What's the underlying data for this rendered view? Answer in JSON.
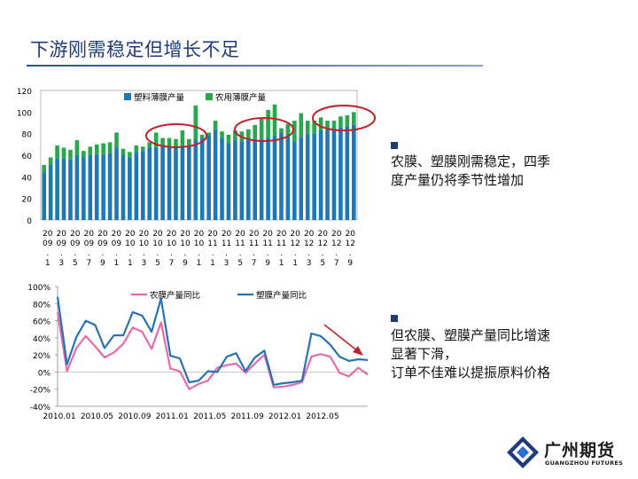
{
  "page_title": "下游刚需稳定但增长不足",
  "notes": [
    {
      "bullet": "■",
      "text": "农膜、塑膜刚需稳定，四季度产量仍将季节性增加",
      "lines": [
        "农膜、塑膜刚需稳定，四季",
        "度产量仍将季节性增加"
      ]
    },
    {
      "bullet": "■",
      "text": "但农膜、塑膜产量同比增速显著下滑，订单不佳难以提振原料价格",
      "lines": [
        "但农膜、塑膜产量同比增速",
        "显著下滑，",
        "订单不佳难以提振原料价格"
      ]
    }
  ],
  "logo": {
    "name": "广州期货",
    "sub": "GUANGZHOU FUTURES"
  },
  "colors": {
    "plastic": "#1d79b5",
    "agri": "#26a84d",
    "line_agri": "#e86aa9",
    "line_plastic": "#2672b3",
    "circle": "#c0202a",
    "arrow": "#c0202a"
  },
  "chart_data": [
    {
      "type": "bar",
      "stacked": true,
      "title": "",
      "ylim": [
        0,
        120
      ],
      "yticks": [
        "0",
        "20",
        "40",
        "60",
        "80",
        "100",
        "120"
      ],
      "xtick_labels": [
        [
          "20",
          "09",
          ".",
          "1"
        ],
        [
          "20",
          "09",
          ".",
          "3"
        ],
        [
          "20",
          "09",
          ".",
          "5"
        ],
        [
          "20",
          "09",
          ".",
          "7"
        ],
        [
          "20",
          "09",
          ".",
          "9"
        ],
        [
          "20",
          "09",
          ".",
          "1"
        ],
        [
          "20",
          "10",
          ".",
          "1"
        ],
        [
          "20",
          "10",
          ".",
          "3"
        ],
        [
          "20",
          "10",
          ".",
          "5"
        ],
        [
          "20",
          "10",
          ".",
          "7"
        ],
        [
          "20",
          "10",
          ".",
          "9"
        ],
        [
          "20",
          "10",
          ".",
          "1"
        ],
        [
          "20",
          "11",
          ".",
          "1"
        ],
        [
          "20",
          "11",
          ".",
          "3"
        ],
        [
          "20",
          "11",
          ".",
          "5"
        ],
        [
          "20",
          "11",
          ".",
          "7"
        ],
        [
          "20",
          "11",
          ".",
          "9"
        ],
        [
          "20",
          "11",
          ".",
          "1"
        ],
        [
          "20",
          "12",
          ".",
          "1"
        ],
        [
          "20",
          "12",
          ".",
          "3"
        ],
        [
          "20",
          "12",
          ".",
          "5"
        ],
        [
          "20",
          "12",
          ".",
          "7"
        ],
        [
          "20",
          "12",
          ".",
          "9"
        ]
      ],
      "legend": [
        "塑料薄膜产量",
        "农用薄膜产量"
      ],
      "series": [
        {
          "name": "塑料薄膜产量",
          "values": [
            44,
            51,
            57,
            57,
            56,
            60,
            58,
            60,
            61,
            61,
            62,
            67,
            60,
            58,
            63,
            64,
            67,
            67,
            69,
            68,
            67,
            69,
            68,
            74,
            76,
            78,
            84,
            76,
            71,
            74,
            73,
            74,
            75,
            75,
            76,
            78,
            81,
            77,
            73,
            77,
            80,
            80,
            83,
            84,
            84,
            86,
            87,
            88
          ]
        },
        {
          "name": "农用薄膜产量",
          "values": [
            7,
            7,
            12,
            10,
            9,
            14,
            6,
            8,
            9,
            10,
            10,
            14,
            6,
            5,
            6,
            4,
            5,
            14,
            7,
            8,
            8,
            14,
            7,
            32,
            3,
            3,
            8,
            6,
            8,
            9,
            9,
            10,
            13,
            19,
            26,
            29,
            4,
            12,
            19,
            22,
            12,
            12,
            12,
            8,
            8,
            10,
            10,
            12
          ]
        }
      ],
      "annotations": [
        "circle around 2010 Q4 peak",
        "circle around 2011 Q4 peak",
        "circle around 2012 Q4 peak"
      ]
    },
    {
      "type": "line",
      "title": "",
      "ylim": [
        -40,
        100
      ],
      "yticks": [
        "-40%",
        "-20%",
        "0%",
        "20%",
        "40%",
        "60%",
        "80%",
        "100%"
      ],
      "xticks": [
        "2010.01",
        "2010.05",
        "2010.09",
        "2011.01",
        "2011.05",
        "2011.09",
        "2012.01",
        "2012.05"
      ],
      "legend": [
        "农膜产量同比",
        "塑膜产量同比"
      ],
      "series": [
        {
          "name": "农膜产量同比",
          "values": [
            70,
            1,
            28,
            42,
            30,
            17,
            23,
            33,
            52,
            47,
            27,
            58,
            4,
            1,
            -20,
            -14,
            -10,
            5,
            8,
            10,
            -1,
            10,
            20,
            -18,
            -17,
            -15,
            -12,
            18,
            21,
            18,
            -1,
            -5,
            5,
            -3
          ]
        },
        {
          "name": "塑膜产量同比",
          "values": [
            88,
            9,
            41,
            60,
            55,
            28,
            43,
            43,
            70,
            66,
            47,
            86,
            19,
            16,
            -12,
            -10,
            1,
            0,
            18,
            22,
            1,
            17,
            25,
            -15,
            -13,
            -12,
            -10,
            45,
            42,
            32,
            18,
            13,
            15,
            14
          ]
        }
      ],
      "annotations": [
        "red arrow pointing down to the latest decline"
      ]
    }
  ]
}
